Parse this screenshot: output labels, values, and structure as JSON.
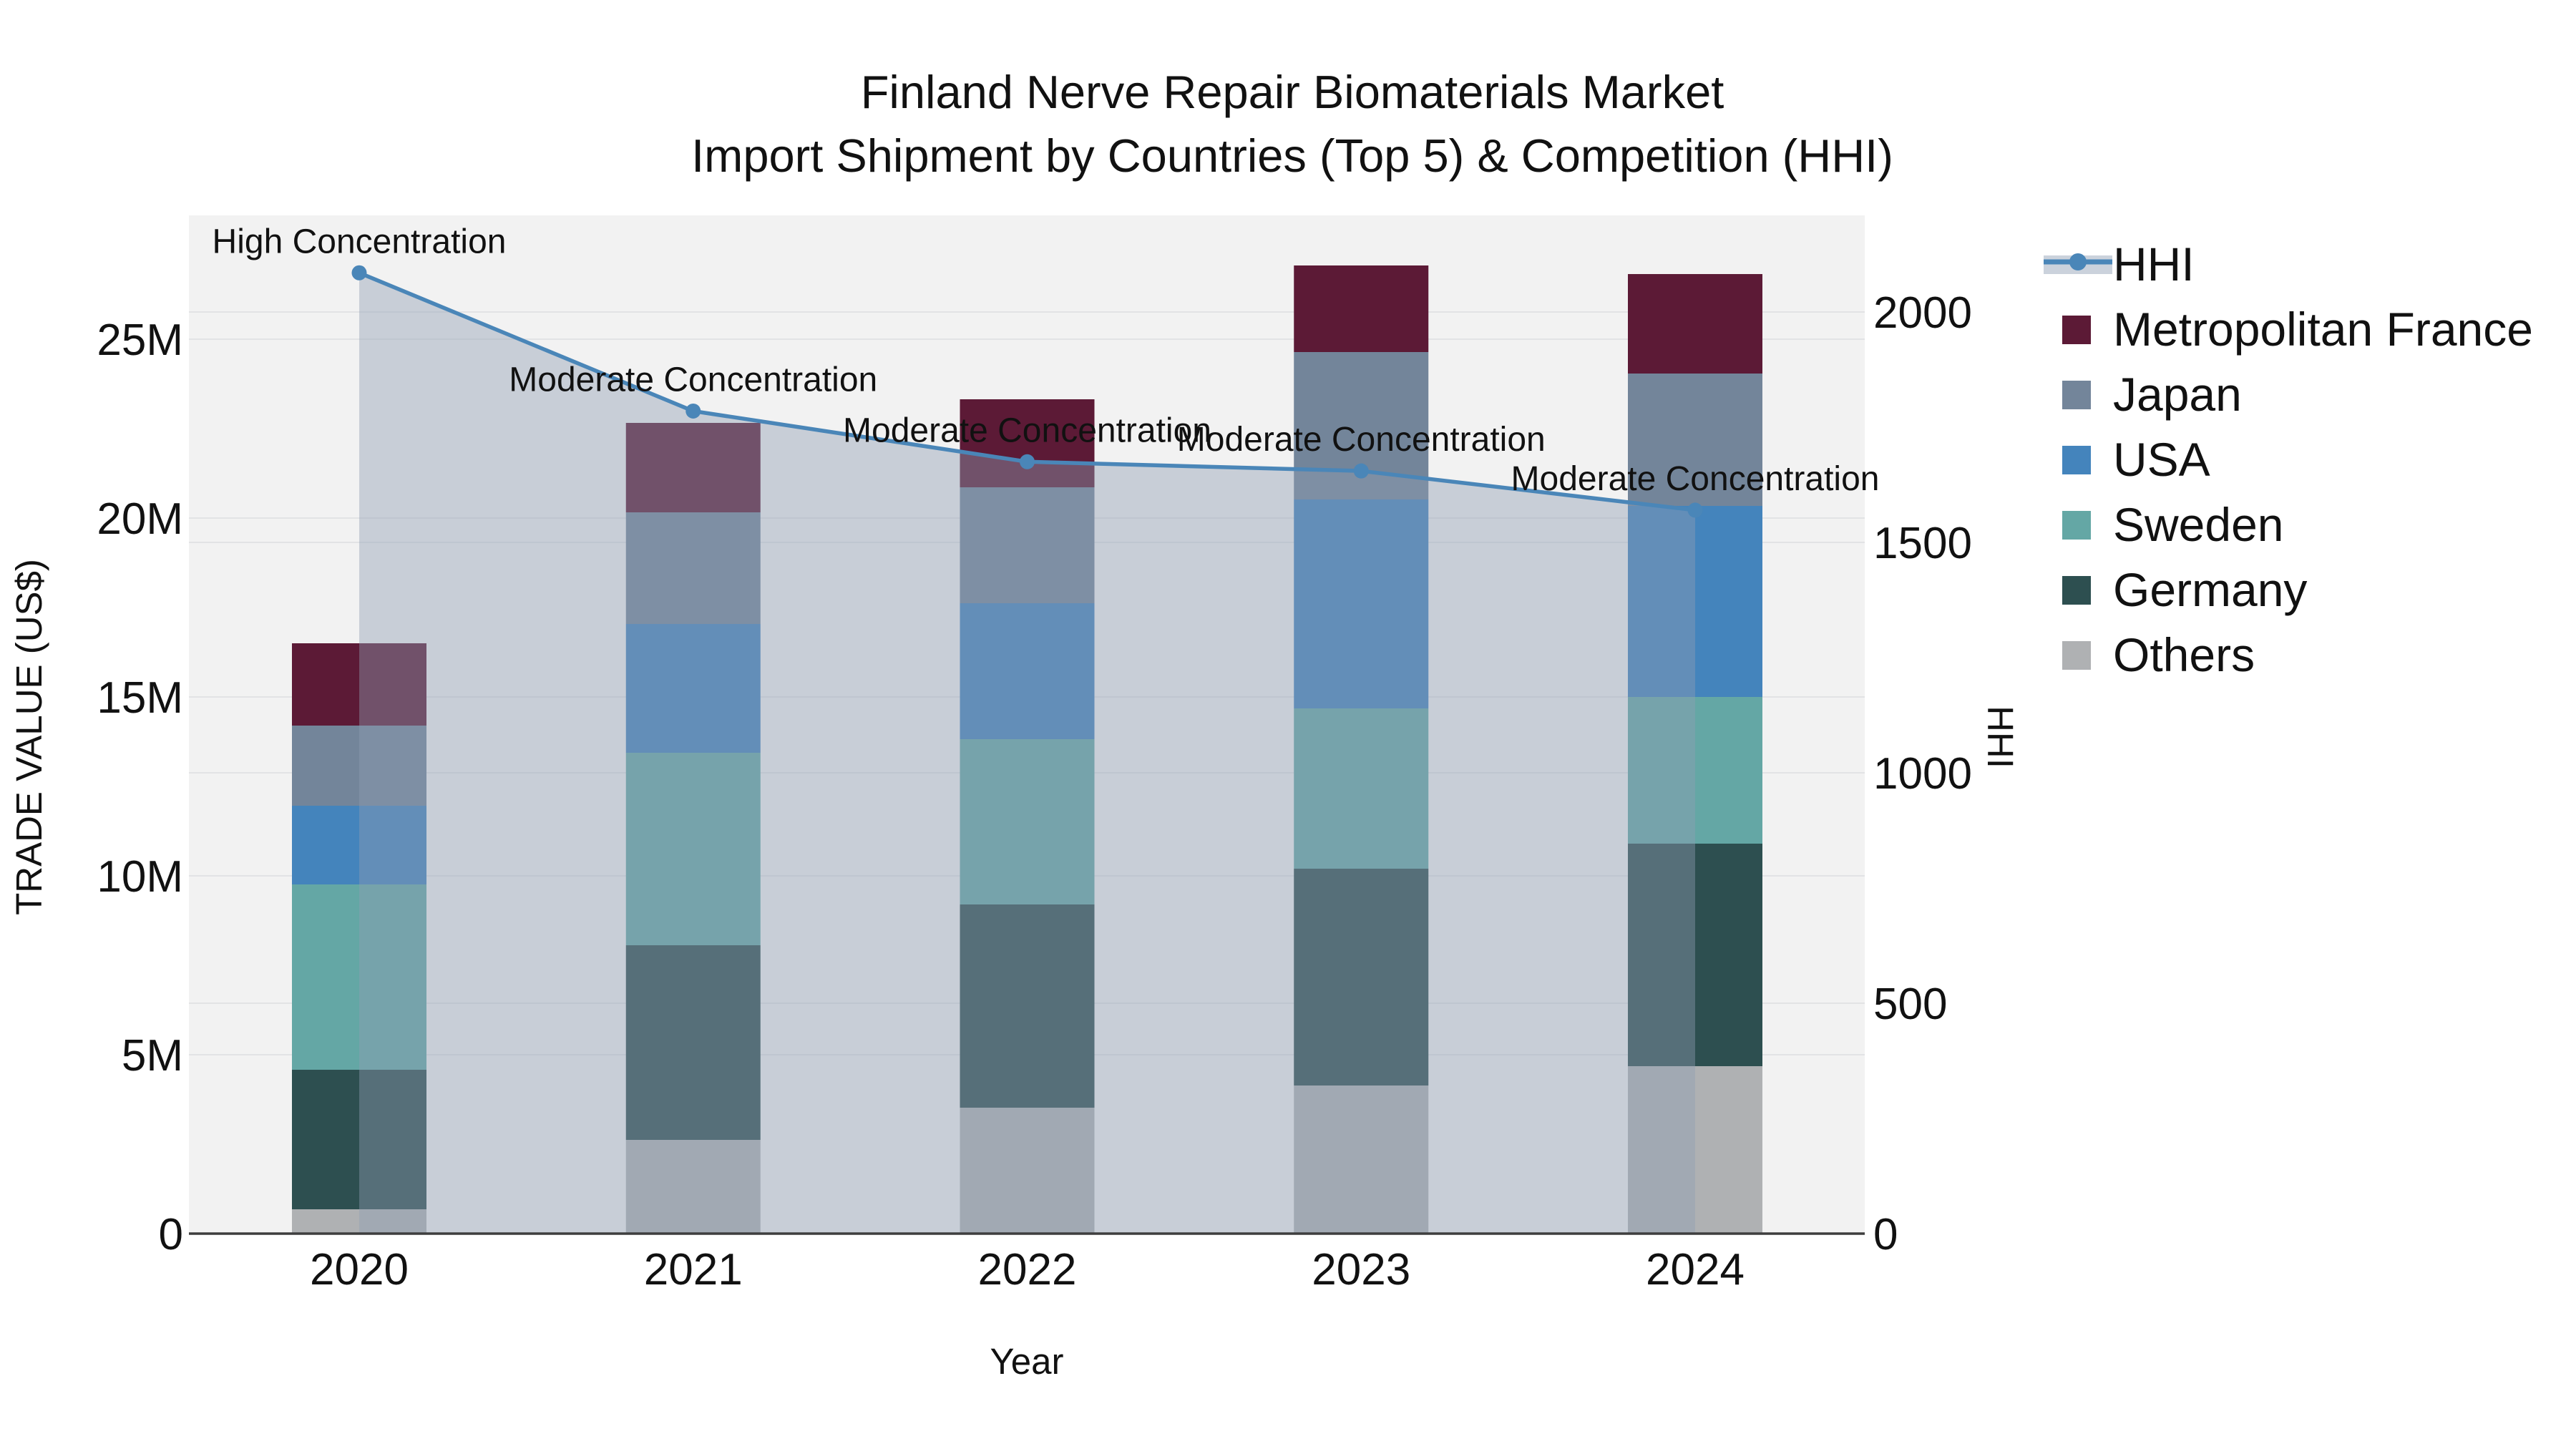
{
  "title": {
    "line1": "Finland Nerve Repair Biomaterials Market",
    "line2": "Import Shipment by Countries (Top 5) & Competition (HHI)"
  },
  "axes": {
    "x": {
      "title": "Year",
      "categories": [
        "2020",
        "2021",
        "2022",
        "2023",
        "2024"
      ]
    },
    "left": {
      "title": "TRADE VALUE (US$)",
      "tick_labels": [
        "0",
        "5M",
        "10M",
        "15M",
        "20M",
        "25M"
      ],
      "tick_values": [
        0,
        5,
        10,
        15,
        20,
        25
      ]
    },
    "right": {
      "title": "HHI",
      "tick_labels": [
        "0",
        "500",
        "1000",
        "1500",
        "2000"
      ],
      "tick_values": [
        0,
        500,
        1000,
        1500,
        2000
      ]
    }
  },
  "legend": {
    "items": [
      {
        "label": "HHI",
        "type": "line-area",
        "color": "#4A86B8",
        "band_color": "#CBD2DC"
      },
      {
        "label": "Metropolitan France",
        "type": "swatch",
        "color": "#5C1A36"
      },
      {
        "label": "Japan",
        "type": "swatch",
        "color": "#73859A"
      },
      {
        "label": "USA",
        "type": "swatch",
        "color": "#4484BC"
      },
      {
        "label": "Sweden",
        "type": "swatch",
        "color": "#64A7A5"
      },
      {
        "label": "Germany",
        "type": "swatch",
        "color": "#2D4F50"
      },
      {
        "label": "Others",
        "type": "swatch",
        "color": "#AFB1B3"
      }
    ]
  },
  "annotations": [
    {
      "category": "2020",
      "text": "High Concentration"
    },
    {
      "category": "2021",
      "text": "Moderate Concentration"
    },
    {
      "category": "2022",
      "text": "Moderate Concentration"
    },
    {
      "category": "2023",
      "text": "Moderate Concentration"
    },
    {
      "category": "2024",
      "text": "Moderate Concentration"
    }
  ],
  "chart_data": {
    "type": "bar",
    "subtype": "stacked-bars-with-line-overlay",
    "title": "Finland Nerve Repair Biomaterials Market — Import Shipment by Countries (Top 5) & Competition (HHI)",
    "xlabel": "Year",
    "ylabel_left": "TRADE VALUE (US$)",
    "ylabel_right": "HHI",
    "categories": [
      "2020",
      "2021",
      "2022",
      "2023",
      "2024"
    ],
    "value_unit": "millions USD",
    "stack_order": "bottom to top",
    "series": [
      {
        "name": "Others",
        "color": "#AFB1B3",
        "values": [
          0.68,
          2.62,
          3.52,
          4.14,
          4.68
        ]
      },
      {
        "name": "Germany",
        "color": "#2D4F50",
        "values": [
          3.9,
          5.44,
          5.68,
          6.06,
          6.22
        ]
      },
      {
        "name": "Sweden",
        "color": "#64A7A5",
        "values": [
          5.18,
          5.38,
          4.62,
          4.48,
          4.1
        ]
      },
      {
        "name": "USA",
        "color": "#4484BC",
        "values": [
          2.2,
          3.6,
          3.8,
          5.84,
          5.34
        ]
      },
      {
        "name": "Japan",
        "color": "#73859A",
        "values": [
          2.24,
          3.12,
          3.24,
          4.12,
          3.7
        ]
      },
      {
        "name": "Metropolitan France",
        "color": "#5C1A36",
        "values": [
          2.3,
          2.5,
          2.46,
          2.42,
          2.78
        ]
      }
    ],
    "bar_totals": [
      16.5,
      22.66,
      23.32,
      27.06,
      26.82
    ],
    "line_series": {
      "name": "HHI",
      "axis": "right",
      "values": [
        2085,
        1785,
        1675,
        1655,
        1570
      ],
      "color": "#4A86B8",
      "area_fill_color": "rgba(144,157,179,0.42)"
    },
    "ylim_left": [
      0,
      28.4
    ],
    "ylim_right": [
      0,
      2210
    ],
    "grid": true,
    "plot_bg_color": "#F2F2F2",
    "grid_color": "#E2E3E5",
    "legend_position": "right"
  }
}
